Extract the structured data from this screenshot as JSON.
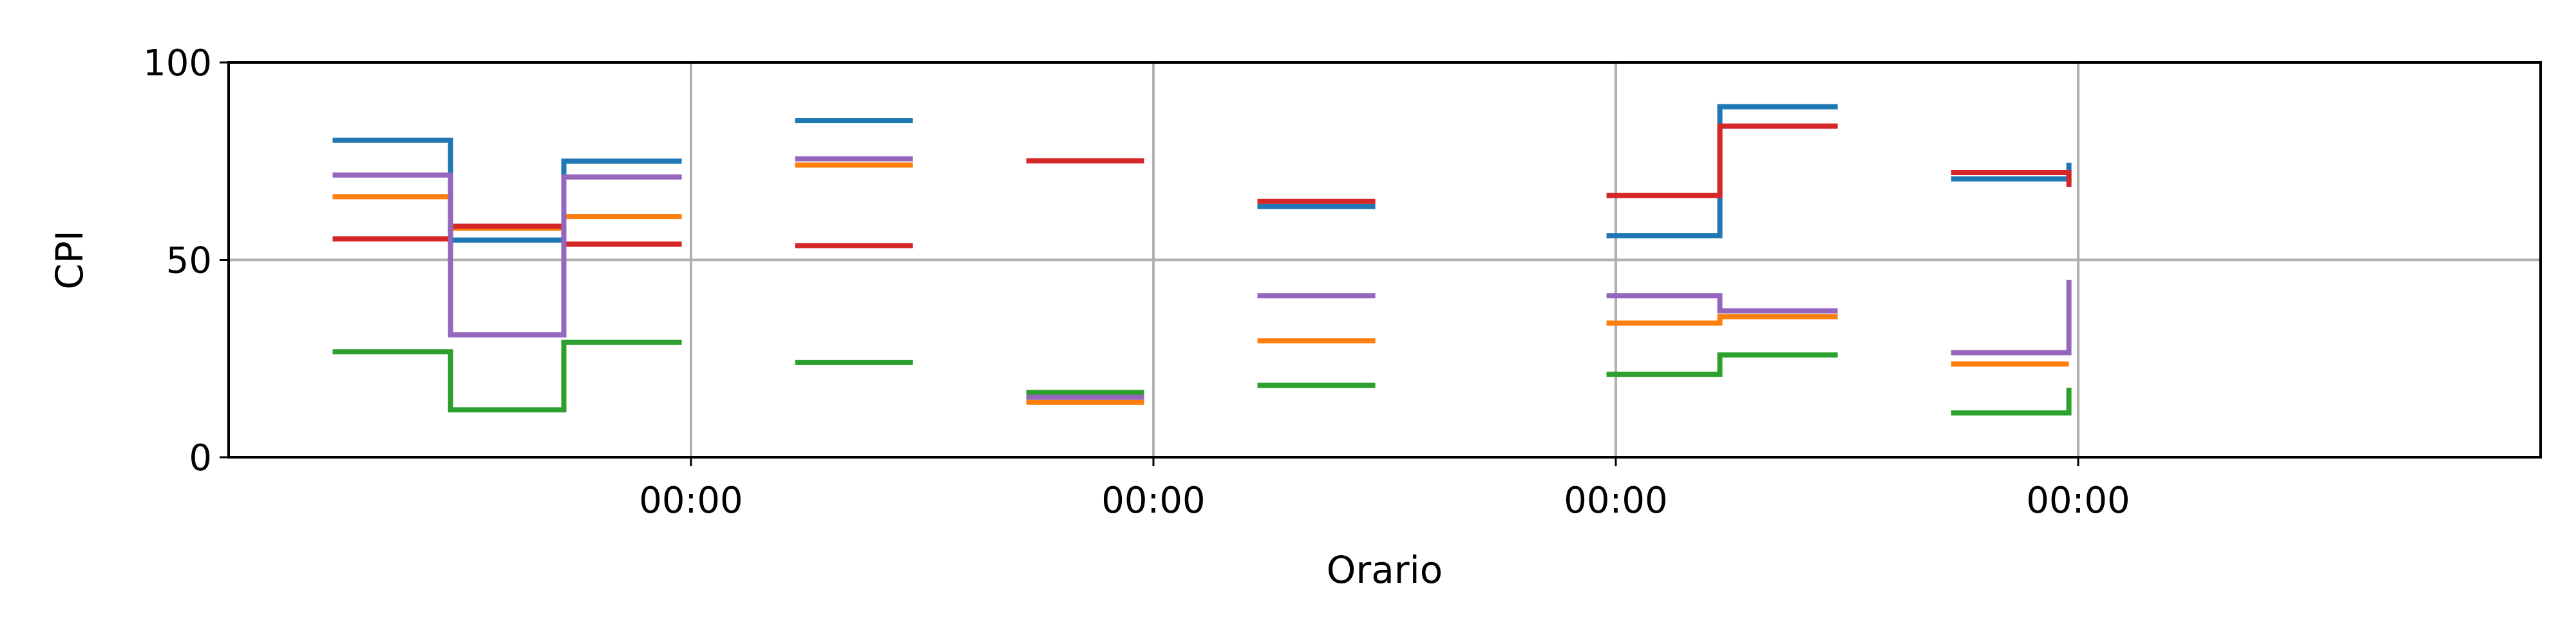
{
  "chart_data": {
    "type": "line",
    "title": "",
    "xlabel": "Orario",
    "ylabel": "CPI",
    "xlim": [
      0,
      10
    ],
    "ylim": [
      0,
      100
    ],
    "xticks": [
      {
        "value": 2,
        "label": "00:00"
      },
      {
        "value": 4,
        "label": "00:00"
      },
      {
        "value": 6,
        "label": "00:00"
      },
      {
        "value": 8,
        "label": "00:00"
      }
    ],
    "yticks": [
      {
        "value": 0,
        "label": "0"
      },
      {
        "value": 50,
        "label": "50"
      },
      {
        "value": 100,
        "label": "100"
      }
    ],
    "grid": true,
    "legend": "none",
    "step": "post",
    "series": [
      {
        "color": "#1f77b4",
        "segments": [
          [
            [
              0.45,
              80.3
            ],
            [
              0.96,
              80.3
            ],
            [
              0.96,
              55.0
            ],
            [
              1.45,
              55.0
            ],
            [
              1.45,
              75.0
            ],
            [
              1.96,
              75.0
            ]
          ],
          [
            [
              2.45,
              85.3
            ],
            [
              2.96,
              85.3
            ]
          ],
          [
            [
              4.45,
              63.5
            ],
            [
              4.96,
              63.5
            ]
          ],
          [
            [
              5.96,
              56.1
            ],
            [
              6.45,
              56.1
            ],
            [
              6.45,
              88.8
            ],
            [
              6.96,
              88.8
            ]
          ],
          [
            [
              7.45,
              70.5
            ],
            [
              7.96,
              70.5
            ],
            [
              7.96,
              74.6
            ]
          ]
        ]
      },
      {
        "color": "#ff7f0e",
        "segments": [
          [
            [
              0.45,
              66.0
            ],
            [
              0.96,
              66.0
            ],
            [
              0.96,
              58.0
            ],
            [
              1.45,
              58.0
            ],
            [
              1.45,
              61.0
            ],
            [
              1.96,
              61.0
            ]
          ],
          [
            [
              2.45,
              74.0
            ],
            [
              2.96,
              74.0
            ]
          ],
          [
            [
              3.45,
              13.9
            ],
            [
              3.96,
              13.9
            ]
          ],
          [
            [
              4.45,
              29.5
            ],
            [
              4.96,
              29.5
            ]
          ],
          [
            [
              5.96,
              34.0
            ],
            [
              6.45,
              34.0
            ],
            [
              6.45,
              35.6
            ],
            [
              6.96,
              35.6
            ]
          ],
          [
            [
              7.45,
              23.6
            ],
            [
              7.96,
              23.6
            ]
          ]
        ]
      },
      {
        "color": "#2ca02c",
        "segments": [
          [
            [
              0.45,
              26.7
            ],
            [
              0.96,
              26.7
            ],
            [
              0.96,
              12.0
            ],
            [
              1.45,
              12.0
            ],
            [
              1.45,
              29.1
            ],
            [
              1.96,
              29.1
            ]
          ],
          [
            [
              2.45,
              24.0
            ],
            [
              2.96,
              24.0
            ]
          ],
          [
            [
              3.45,
              16.4
            ],
            [
              3.96,
              16.4
            ]
          ],
          [
            [
              4.45,
              18.2
            ],
            [
              4.96,
              18.2
            ]
          ],
          [
            [
              5.96,
              21.0
            ],
            [
              6.45,
              21.0
            ],
            [
              6.45,
              25.9
            ],
            [
              6.96,
              25.9
            ]
          ],
          [
            [
              7.45,
              11.2
            ],
            [
              7.96,
              11.2
            ],
            [
              7.96,
              17.6
            ]
          ]
        ]
      },
      {
        "color": "#d62728",
        "segments": [
          [
            [
              0.45,
              55.3
            ],
            [
              0.96,
              55.3
            ],
            [
              0.96,
              58.5
            ],
            [
              1.45,
              58.5
            ],
            [
              1.45,
              54.0
            ],
            [
              1.96,
              54.0
            ]
          ],
          [
            [
              2.45,
              53.6
            ],
            [
              2.96,
              53.6
            ]
          ],
          [
            [
              3.45,
              75.1
            ],
            [
              3.96,
              75.1
            ]
          ],
          [
            [
              4.45,
              64.8
            ],
            [
              4.96,
              64.8
            ]
          ],
          [
            [
              5.96,
              66.3
            ],
            [
              6.45,
              66.3
            ],
            [
              6.45,
              83.9
            ],
            [
              6.96,
              83.9
            ]
          ],
          [
            [
              7.45,
              72.1
            ],
            [
              7.96,
              72.1
            ],
            [
              7.96,
              68.5
            ]
          ]
        ]
      },
      {
        "color": "#9467bd",
        "segments": [
          [
            [
              0.45,
              71.5
            ],
            [
              0.96,
              71.5
            ],
            [
              0.96,
              31.0
            ],
            [
              1.45,
              31.0
            ],
            [
              1.45,
              71.0
            ],
            [
              1.96,
              71.0
            ]
          ],
          [
            [
              2.45,
              75.6
            ],
            [
              2.96,
              75.6
            ]
          ],
          [
            [
              3.45,
              15.2
            ],
            [
              3.96,
              15.2
            ]
          ],
          [
            [
              4.45,
              40.9
            ],
            [
              4.96,
              40.9
            ]
          ],
          [
            [
              5.96,
              40.9
            ],
            [
              6.45,
              40.9
            ],
            [
              6.45,
              37.1
            ],
            [
              6.96,
              37.1
            ]
          ],
          [
            [
              7.45,
              26.5
            ],
            [
              7.96,
              26.5
            ],
            [
              7.96,
              44.9
            ]
          ]
        ]
      }
    ]
  }
}
